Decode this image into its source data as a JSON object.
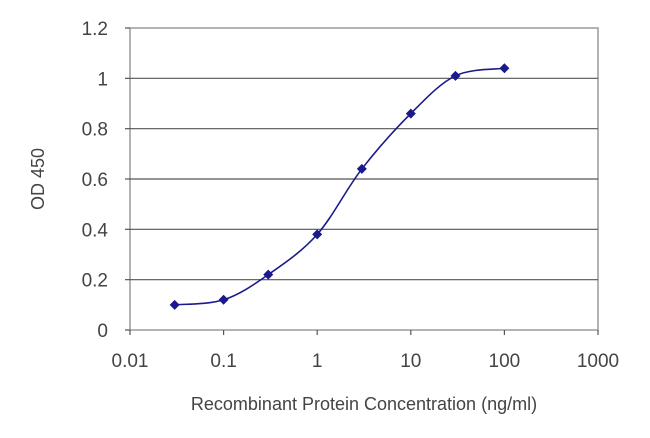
{
  "chart_data": {
    "type": "line",
    "title": "",
    "xlabel": "Recombinant Protein Concentration (ng/ml)",
    "ylabel": "OD 450",
    "x_scale": "log",
    "xlim": [
      0.01,
      1000
    ],
    "ylim": [
      0,
      1.2
    ],
    "x_ticks": [
      "0.01",
      "0.1",
      "1",
      "10",
      "100",
      "1000"
    ],
    "y_ticks": [
      "0",
      "0.2",
      "0.4",
      "0.6",
      "0.8",
      "1",
      "1.2"
    ],
    "grid": "horizontal",
    "legend": "none",
    "series": [
      {
        "color": "#1a1a8c",
        "marker": "diamond",
        "smooth": true,
        "x": [
          0.03,
          0.1,
          0.3,
          1,
          3,
          10,
          30,
          100
        ],
        "y": [
          0.1,
          0.12,
          0.22,
          0.38,
          0.64,
          0.86,
          1.01,
          1.04
        ]
      }
    ]
  }
}
